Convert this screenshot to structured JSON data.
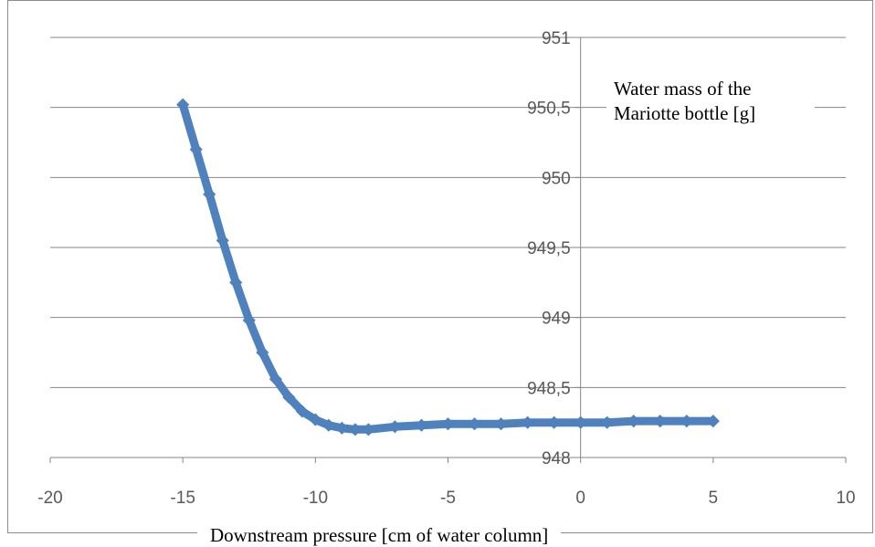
{
  "chart_data": {
    "type": "scatter",
    "title": "",
    "xlabel": "Downstream pressure [cm of water column]",
    "ylabel_line1": "Water mass of the",
    "ylabel_line2": "Mariotte bottle [g]",
    "xlim": [
      -20,
      10
    ],
    "ylim": [
      948,
      951
    ],
    "x_ticks": [
      -20,
      -15,
      -10,
      -5,
      0,
      5,
      10
    ],
    "x_tick_labels": [
      "-20",
      "-15",
      "-10",
      "-5",
      "0",
      "5",
      "10"
    ],
    "y_ticks": [
      948,
      948.5,
      949,
      949.5,
      950,
      950.5,
      951
    ],
    "y_tick_labels": [
      "948",
      "948,5",
      "949",
      "949,5",
      "950",
      "950,5",
      "951"
    ],
    "grid": "horizontal",
    "legend": "none",
    "series": [
      {
        "color": "#4f81bd",
        "x": [
          -15,
          -14.5,
          -14,
          -13.5,
          -13,
          -12.5,
          -12,
          -11.5,
          -11,
          -10.5,
          -10,
          -9.5,
          -9,
          -8.5,
          -8,
          -7,
          -6,
          -5,
          -4,
          -3,
          -2,
          -1,
          0,
          1,
          2,
          3,
          4,
          5
        ],
        "y": [
          950.52,
          950.2,
          949.88,
          949.55,
          949.25,
          948.98,
          948.75,
          948.56,
          948.43,
          948.33,
          948.27,
          948.23,
          948.21,
          948.2,
          948.2,
          948.22,
          948.23,
          948.24,
          948.24,
          948.24,
          948.25,
          948.25,
          948.25,
          948.25,
          948.26,
          948.26,
          948.26,
          948.26
        ]
      }
    ]
  }
}
